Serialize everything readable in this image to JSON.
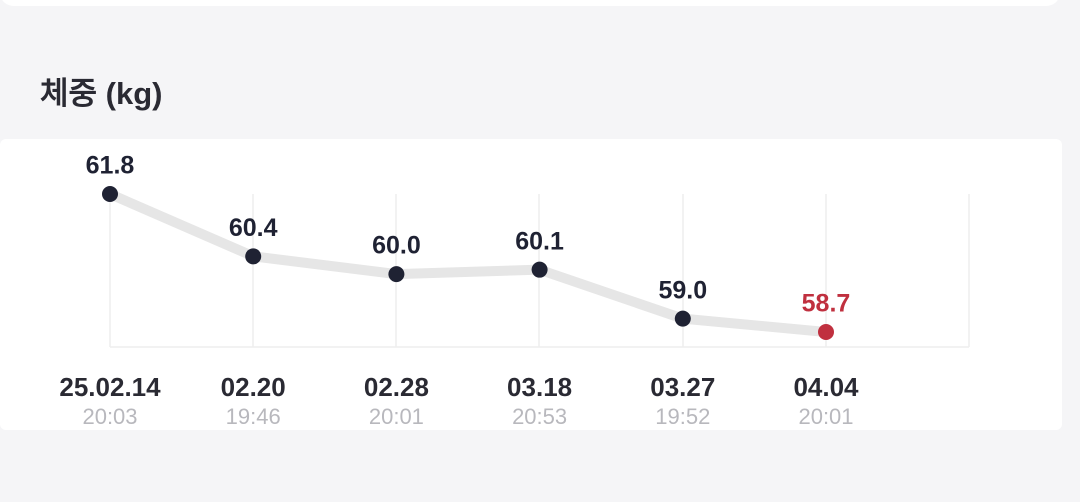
{
  "chart_data": {
    "type": "line",
    "title": "체중 (kg)",
    "categories": [
      "25.02.14",
      "02.20",
      "02.28",
      "03.18",
      "03.27",
      "04.04"
    ],
    "times": [
      "20:03",
      "19:46",
      "20:01",
      "20:53",
      "19:52",
      "20:01"
    ],
    "values": [
      61.8,
      60.4,
      60.0,
      60.1,
      59.0,
      58.7
    ],
    "value_labels": [
      "61.8",
      "60.4",
      "60.0",
      "60.1",
      "59.0",
      "58.7"
    ],
    "color": "#1f2233",
    "line_color": "#e6e6e6",
    "highlight": "last",
    "highlight_color": "#c0303f"
  }
}
